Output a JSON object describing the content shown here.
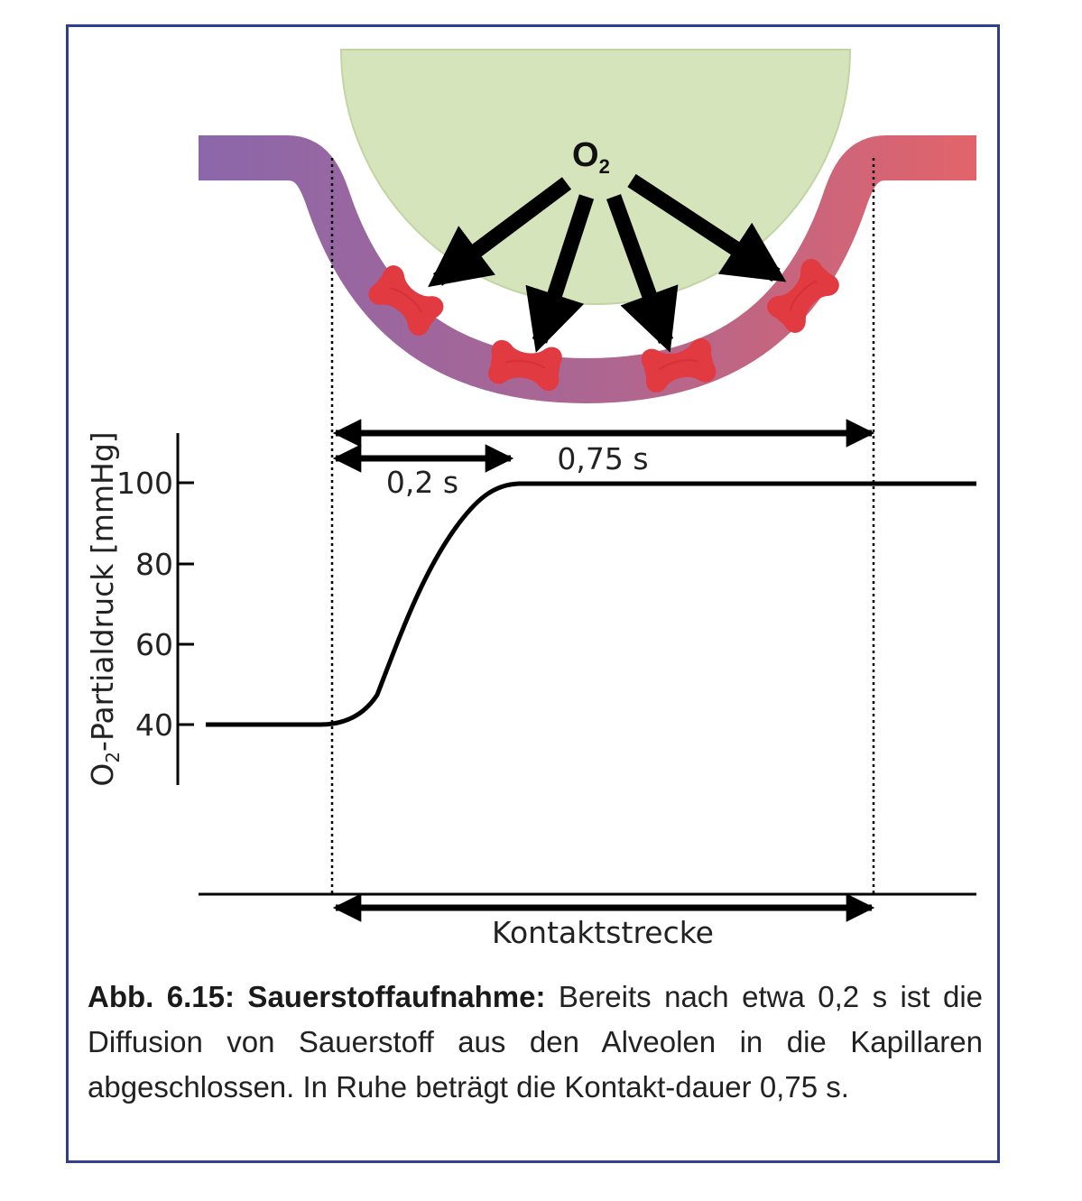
{
  "diagram": {
    "molecule_label": "O",
    "molecule_subscript": "2",
    "duration_short": "0,2 s",
    "duration_long": "0,75 s",
    "contact_label": "Kontaktstrecke",
    "y_axis_label": "O",
    "y_axis_label_subscript": "2",
    "y_axis_label_rest": "-Partialdruck [mmHg]",
    "y_ticks": [
      "100",
      "80",
      "60",
      "40"
    ]
  },
  "chart_data": {
    "type": "line",
    "ylabel": "O2-Partialdruck [mmHg]",
    "y_ticks": [
      40,
      60,
      80,
      100
    ],
    "series": [
      {
        "values_description_free": true,
        "x": [
          -0.3,
          0.0,
          0.05,
          0.1,
          0.15,
          0.2,
          0.3,
          0.5,
          0.75,
          0.95
        ],
        "y": [
          40,
          40,
          45,
          65,
          88,
          100,
          100,
          100,
          100,
          100
        ]
      }
    ],
    "annotations": [
      "0,2 s",
      "0,75 s",
      "Kontaktstrecke"
    ]
  },
  "caption": {
    "bold": "Abb. 6.15: Sauerstoffaufnahme:",
    "text": " Bereits nach etwa 0,2 s ist die Diffusion von Sauerstoff aus den Alveolen in die Kapillaren abgeschlossen. In Ruhe beträgt die Kontakt-dauer 0,75 s."
  },
  "colors": {
    "frame": "#2f3f8c",
    "alveolus": "#d6e4bc",
    "capillary_start": "#8a65a8",
    "capillary_end": "#e0636a",
    "erythrocyte": "#e03a3f"
  }
}
